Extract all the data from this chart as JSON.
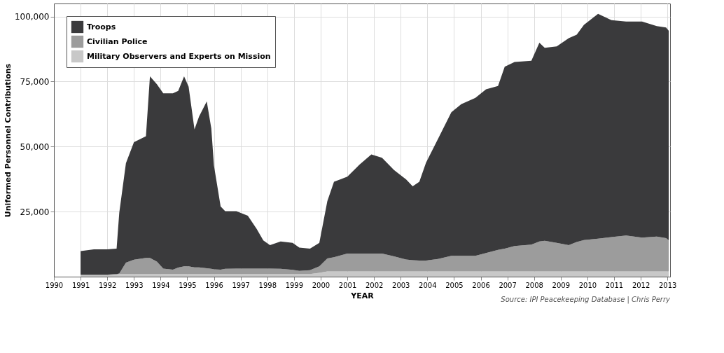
{
  "chart_data": {
    "type": "area",
    "stacked": true,
    "xlabel": "YEAR",
    "ylabel": "Uniformed Personnel Contributions",
    "annotations": [
      "Source: IPI Peacekeeping Database | Chris Perry"
    ],
    "x": [
      1991.0,
      1991.5,
      1992.0,
      1992.35,
      1992.45,
      1992.7,
      1993.0,
      1993.45,
      1993.6,
      1993.86,
      1994.1,
      1994.46,
      1994.66,
      1994.88,
      1995.05,
      1995.27,
      1995.44,
      1995.73,
      1995.9,
      1996.0,
      1996.25,
      1996.42,
      1996.84,
      1997.27,
      1997.6,
      1997.85,
      1998.1,
      1998.5,
      1998.95,
      1999.2,
      1999.6,
      1999.95,
      2000.25,
      2000.5,
      2001.0,
      2001.45,
      2001.9,
      2002.3,
      2002.75,
      2003.2,
      2003.45,
      2003.7,
      2003.95,
      2004.4,
      2004.9,
      2005.27,
      2005.8,
      2006.2,
      2006.65,
      2006.9,
      2007.27,
      2007.9,
      2008.2,
      2008.4,
      2008.85,
      2009.3,
      2009.6,
      2009.87,
      2010.4,
      2010.9,
      2011.45,
      2012.05,
      2012.6,
      2012.95,
      2013.05
    ],
    "series": [
      {
        "name": "Military Observers and Experts on Mission",
        "color": "#c8c8c8",
        "values": [
          500,
          500,
          500,
          800,
          1000,
          1000,
          1000,
          1000,
          1000,
          1000,
          1000,
          1000,
          1000,
          1000,
          1000,
          1000,
          1000,
          1000,
          1000,
          1000,
          1000,
          1000,
          1000,
          1000,
          1000,
          1000,
          1000,
          1000,
          1000,
          1000,
          1000,
          1500,
          2000,
          2000,
          2000,
          2000,
          2000,
          2000,
          2000,
          2000,
          2000,
          2000,
          2000,
          2000,
          2000,
          2000,
          2000,
          2000,
          2000,
          2000,
          2000,
          2000,
          2000,
          2000,
          2000,
          2000,
          2000,
          2000,
          2000,
          2000,
          2000,
          2000,
          2000,
          2000,
          2000
        ]
      },
      {
        "name": "Civilian Police",
        "color": "#9c9c9c",
        "values": [
          300,
          300,
          300,
          200,
          200,
          4400,
          5500,
          6200,
          6200,
          4800,
          2100,
          1700,
          2500,
          3000,
          3000,
          2600,
          2600,
          2200,
          2000,
          1800,
          1700,
          2000,
          2100,
          2100,
          2100,
          2100,
          2100,
          2000,
          1600,
          1200,
          1500,
          2500,
          5000,
          5500,
          6900,
          6900,
          6900,
          6900,
          5800,
          4600,
          4300,
          4200,
          4200,
          4800,
          6000,
          6000,
          6000,
          7100,
          8300,
          8800,
          9800,
          10300,
          11500,
          11800,
          11000,
          10100,
          11300,
          12100,
          12600,
          13200,
          13800,
          13000,
          13400,
          12800,
          12000
        ]
      },
      {
        "name": "Troops",
        "color": "#3a3a3c",
        "values": [
          9000,
          9700,
          9700,
          9800,
          23400,
          38200,
          45200,
          46800,
          69800,
          68200,
          67400,
          67800,
          67900,
          73000,
          69000,
          53000,
          57900,
          64200,
          54000,
          39900,
          24300,
          22200,
          22100,
          20300,
          15300,
          10800,
          9000,
          10500,
          10400,
          9000,
          8300,
          9000,
          22000,
          29000,
          29500,
          34100,
          38100,
          36800,
          33200,
          30800,
          28400,
          30300,
          37600,
          46200,
          55200,
          58300,
          60700,
          62900,
          63000,
          69900,
          70700,
          70700,
          76400,
          74200,
          75500,
          79600,
          79700,
          82700,
          86400,
          83400,
          82300,
          83100,
          80900,
          81000,
          80500
        ]
      }
    ],
    "xlim": [
      1990,
      2013.1
    ],
    "xticks": [
      1990,
      1991,
      1992,
      1993,
      1994,
      1995,
      1996,
      1997,
      1998,
      1999,
      2000,
      2001,
      2002,
      2003,
      2004,
      2005,
      2006,
      2007,
      2008,
      2009,
      2010,
      2011,
      2012,
      2013
    ],
    "ylim": [
      0,
      105000
    ],
    "yticks": [
      {
        "value": 25000,
        "label": "25,000"
      },
      {
        "value": 50000,
        "label": "50,000"
      },
      {
        "value": 75000,
        "label": "75,000"
      },
      {
        "value": 100000,
        "label": "100,000"
      }
    ],
    "grid": true,
    "legend": "top left"
  }
}
